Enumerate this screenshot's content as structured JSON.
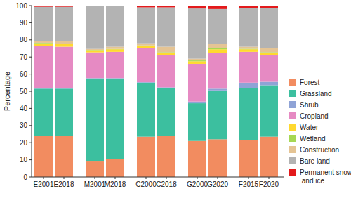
{
  "chart_data": {
    "type": "bar",
    "stacked": true,
    "y_label": "Percentage",
    "categories": [
      "E2001",
      "E2018",
      "M2001",
      "M2018",
      "C2000",
      "C2018",
      "G2000",
      "G2020",
      "F2015",
      "F2020"
    ],
    "ylim": [
      0,
      100
    ],
    "yticks": [
      0,
      10,
      20,
      30,
      40,
      50,
      60,
      70,
      80,
      90,
      100
    ],
    "grid": false,
    "legend": "right",
    "series": [
      {
        "name": "Forest",
        "color": "#f28c60",
        "values": [
          24,
          24,
          9,
          10.5,
          23.5,
          24,
          21,
          22,
          21.5,
          23.5
        ]
      },
      {
        "name": "Grassland",
        "color": "#3cbf9f",
        "values": [
          27.5,
          27.5,
          48.5,
          47,
          31.5,
          28,
          22,
          28.5,
          30.5,
          30
        ]
      },
      {
        "name": "Shrub",
        "color": "#8fa3d6",
        "values": [
          0.5,
          0.5,
          0.2,
          0.2,
          0.3,
          0.3,
          1,
          1,
          3,
          2
        ]
      },
      {
        "name": "Cropland",
        "color": "#e68ac3",
        "values": [
          24.5,
          24,
          15,
          15.3,
          19.7,
          18.7,
          22,
          21,
          18,
          15.5
        ]
      },
      {
        "name": "Water",
        "color": "#ffd92f",
        "values": [
          1.5,
          1.5,
          1.3,
          1.5,
          1.5,
          1.5,
          1.5,
          2,
          1.5,
          1.5
        ]
      },
      {
        "name": "Wetland",
        "color": "#a6d854",
        "values": [
          0.3,
          0.3,
          0.2,
          0.2,
          0.3,
          0.3,
          0.5,
          0.5,
          0.3,
          0.3
        ]
      },
      {
        "name": "Construction",
        "color": "#e5c494",
        "values": [
          1.2,
          1.7,
          0.5,
          1.3,
          1.2,
          3.2,
          1,
          2.5,
          1.2,
          2.2
        ]
      },
      {
        "name": "Bare land",
        "color": "#b3b3b3",
        "values": [
          19.8,
          19.8,
          25,
          23.7,
          21,
          23,
          29.3,
          20.5,
          22.7,
          23.5
        ]
      },
      {
        "name": "Permanent snow and ice",
        "color": "#e31a1c",
        "values": [
          0.7,
          0.7,
          0.3,
          0.3,
          1,
          1,
          1.7,
          2,
          1.3,
          1.5
        ]
      }
    ]
  }
}
